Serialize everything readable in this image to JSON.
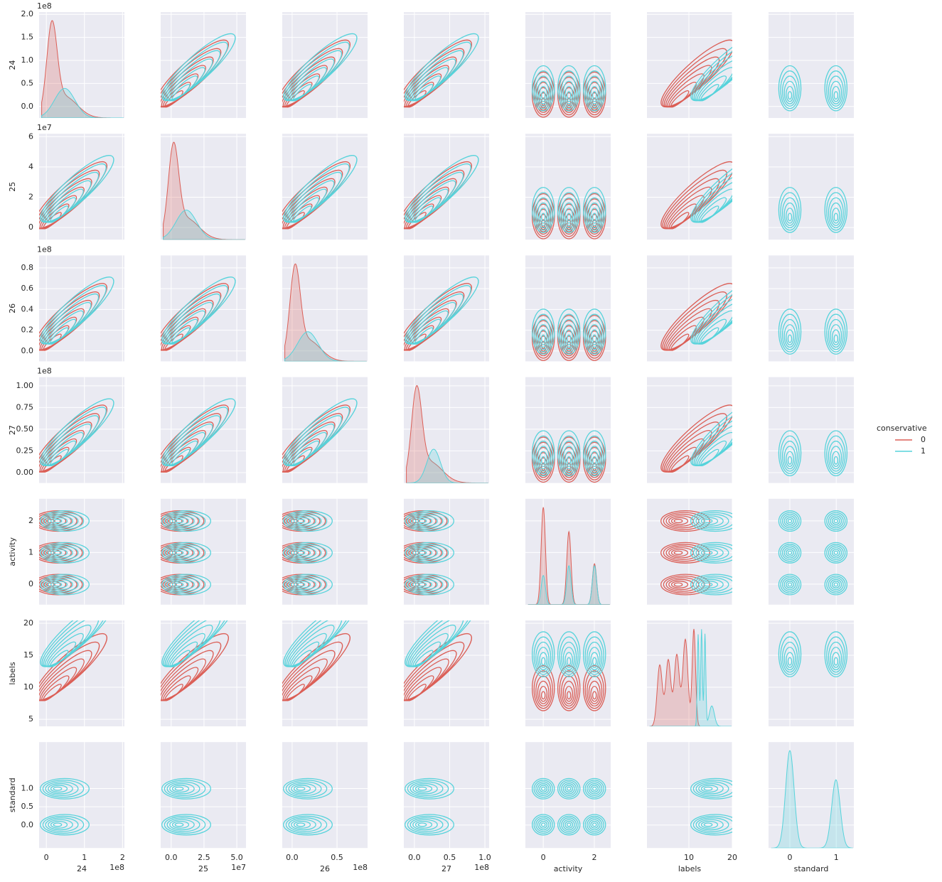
{
  "chart_data": {
    "type": "pairplot",
    "grid": true,
    "legend_title": "conservative",
    "legend_position": "right",
    "series": [
      {
        "name": "0",
        "color": "#db5f57"
      },
      {
        "name": "1",
        "color": "#57d3db"
      }
    ],
    "variables": [
      {
        "label": "24",
        "offset": "1e8",
        "xlim": [
          -0.19,
          2.05
        ],
        "xticks": [
          0,
          1,
          2
        ],
        "ylim": [
          -0.25,
          2.05
        ],
        "yticks": [
          {
            "value": 0,
            "label": "0.0"
          },
          {
            "value": 0.5,
            "label": "0.5"
          },
          {
            "value": 1,
            "label": "1.0"
          },
          {
            "value": 1.5,
            "label": "1.5"
          },
          {
            "value": 2,
            "label": "2.0"
          }
        ]
      },
      {
        "label": "25",
        "offset": "1e7",
        "xlim": [
          -0.8,
          5.7
        ],
        "xticks": [
          {
            "value": 0,
            "label": "0.0"
          },
          {
            "value": 2.5,
            "label": "2.5"
          },
          {
            "value": 5,
            "label": "5.0"
          }
        ],
        "ylim": [
          -0.8,
          6.19
        ],
        "yticks": [
          0,
          2,
          4,
          6
        ]
      },
      {
        "label": "26",
        "offset": "1e8",
        "xlim": [
          -0.11,
          0.84
        ],
        "xticks": [
          {
            "value": 0,
            "label": "0.0"
          },
          {
            "value": 0.5,
            "label": "0.5"
          }
        ],
        "ylim": [
          -0.1,
          0.92
        ],
        "yticks": [
          {
            "value": 0,
            "label": "0.0"
          },
          0.2,
          0.4,
          0.6,
          0.8
        ]
      },
      {
        "label": "27",
        "offset": "1e8",
        "xlim": [
          -0.15,
          1.06
        ],
        "xticks": [
          {
            "value": 0,
            "label": "0.0"
          },
          0.5,
          {
            "value": 1,
            "label": "1.0"
          }
        ],
        "ylim": [
          -0.12,
          1.1
        ],
        "yticks": [
          {
            "value": 0,
            "label": "0.00"
          },
          0.25,
          {
            "value": 0.5,
            "label": "0.50"
          },
          0.75,
          {
            "value": 1,
            "label": "1.00"
          }
        ]
      },
      {
        "label": "activity",
        "xlim": [
          -0.7,
          2.64
        ],
        "xticks": [
          0,
          2
        ],
        "ylim": [
          -0.65,
          2.7
        ],
        "yticks": [
          0,
          1,
          2
        ]
      },
      {
        "label": "labels",
        "xlim": [
          0.33,
          20
        ],
        "xticks": [
          10,
          20
        ],
        "ylim": [
          3.9,
          20.44
        ],
        "yticks": [
          5,
          10,
          15,
          20
        ]
      },
      {
        "label": "standard",
        "xlim": [
          -0.46,
          1.38
        ],
        "xticks": [
          0,
          1
        ],
        "ylim": [
          -0.63,
          2.27
        ],
        "yticks": [
          {
            "value": 0,
            "label": "0.0"
          },
          0.5,
          {
            "value": 1,
            "label": "1.0"
          }
        ]
      }
    ]
  }
}
